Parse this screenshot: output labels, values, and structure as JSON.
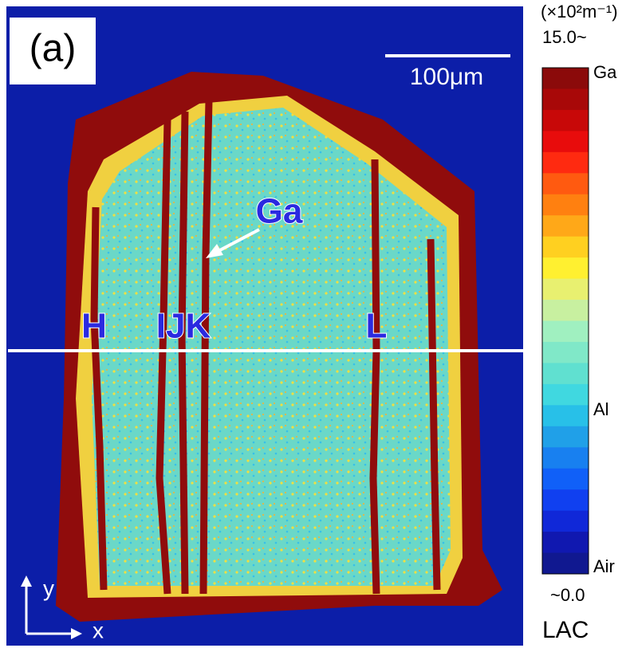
{
  "panel_label": "(a)",
  "scale_bar": "100μm",
  "annotations": {
    "arrow_label": "Ga",
    "regions": [
      "H",
      "IJK",
      "L"
    ]
  },
  "axes": {
    "y": "y",
    "x": "x"
  },
  "colorbar": {
    "unit": "(×10²m⁻¹)",
    "max_label": "15.0~",
    "min_label": "~0.0",
    "title": "LAC",
    "markers": [
      "Ga",
      "Al",
      "Air"
    ],
    "colors": [
      "#8b0a0a",
      "#a80808",
      "#c80808",
      "#e80c0c",
      "#ff2a10",
      "#ff5a10",
      "#ff8010",
      "#ffa818",
      "#ffd020",
      "#fff030",
      "#e8f070",
      "#c8f0a0",
      "#a0f0c0",
      "#80e8c8",
      "#60e0d0",
      "#40d8e0",
      "#28c0e8",
      "#20a0e8",
      "#1880f0",
      "#1060f8",
      "#1040f0",
      "#1028d8",
      "#1018b0",
      "#101890"
    ]
  }
}
